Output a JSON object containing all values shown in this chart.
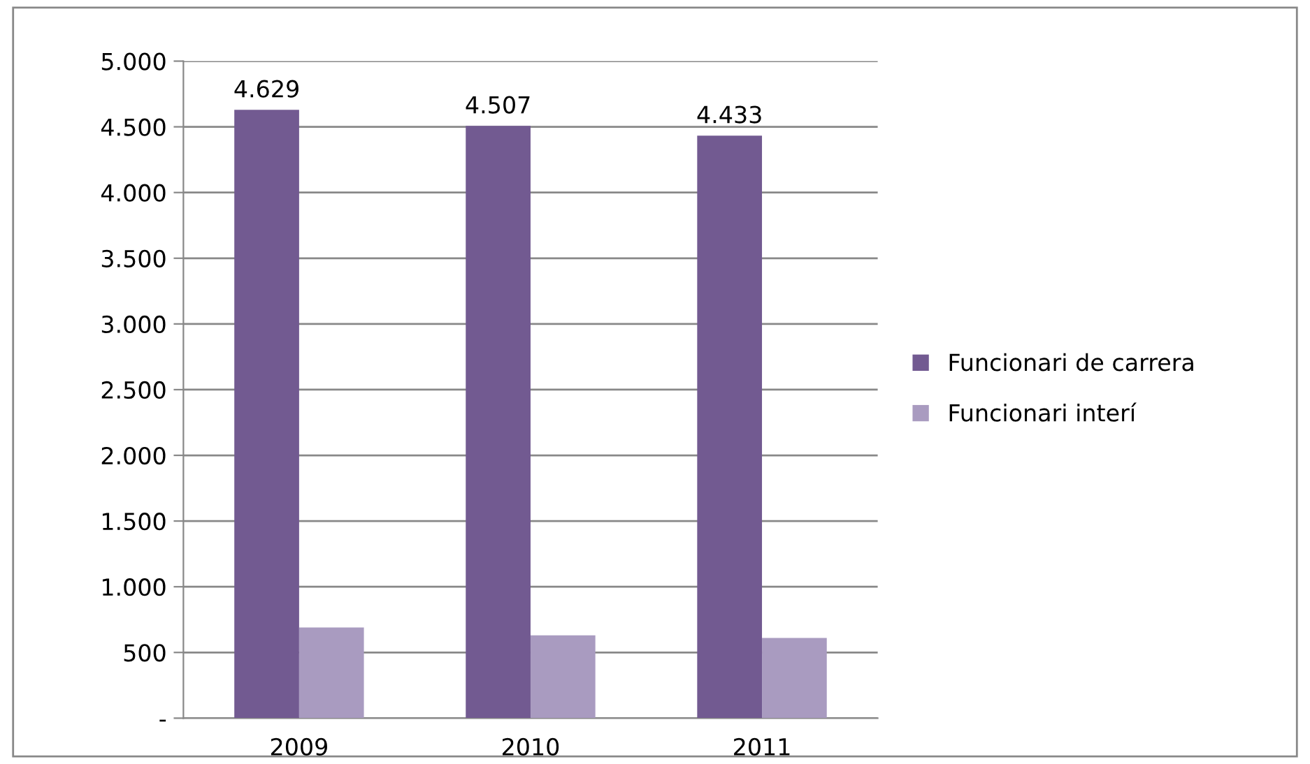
{
  "chart_data": {
    "type": "bar",
    "categories": [
      "2009",
      "2010",
      "2011"
    ],
    "series": [
      {
        "name": "Funcionari de carrera",
        "color": "#725a91",
        "values": [
          4629,
          4507,
          4433
        ],
        "value_labels": [
          "4.629",
          "4.507",
          "4.433"
        ]
      },
      {
        "name": "Funcionari interí",
        "color": "#a99bc0",
        "values": [
          690,
          630,
          610
        ]
      }
    ],
    "ylim": [
      0,
      5000
    ],
    "yticks": [
      {
        "value": 0,
        "label": "-"
      },
      {
        "value": 500,
        "label": "500"
      },
      {
        "value": 1000,
        "label": "1.000"
      },
      {
        "value": 1500,
        "label": "1.500"
      },
      {
        "value": 2000,
        "label": "2.000"
      },
      {
        "value": 2500,
        "label": "2.500"
      },
      {
        "value": 3000,
        "label": "3.000"
      },
      {
        "value": 3500,
        "label": "3.500"
      },
      {
        "value": 4000,
        "label": "4.000"
      },
      {
        "value": 4500,
        "label": "4.500"
      },
      {
        "value": 5000,
        "label": "5.000"
      }
    ],
    "grid": "y",
    "legend": "right"
  }
}
